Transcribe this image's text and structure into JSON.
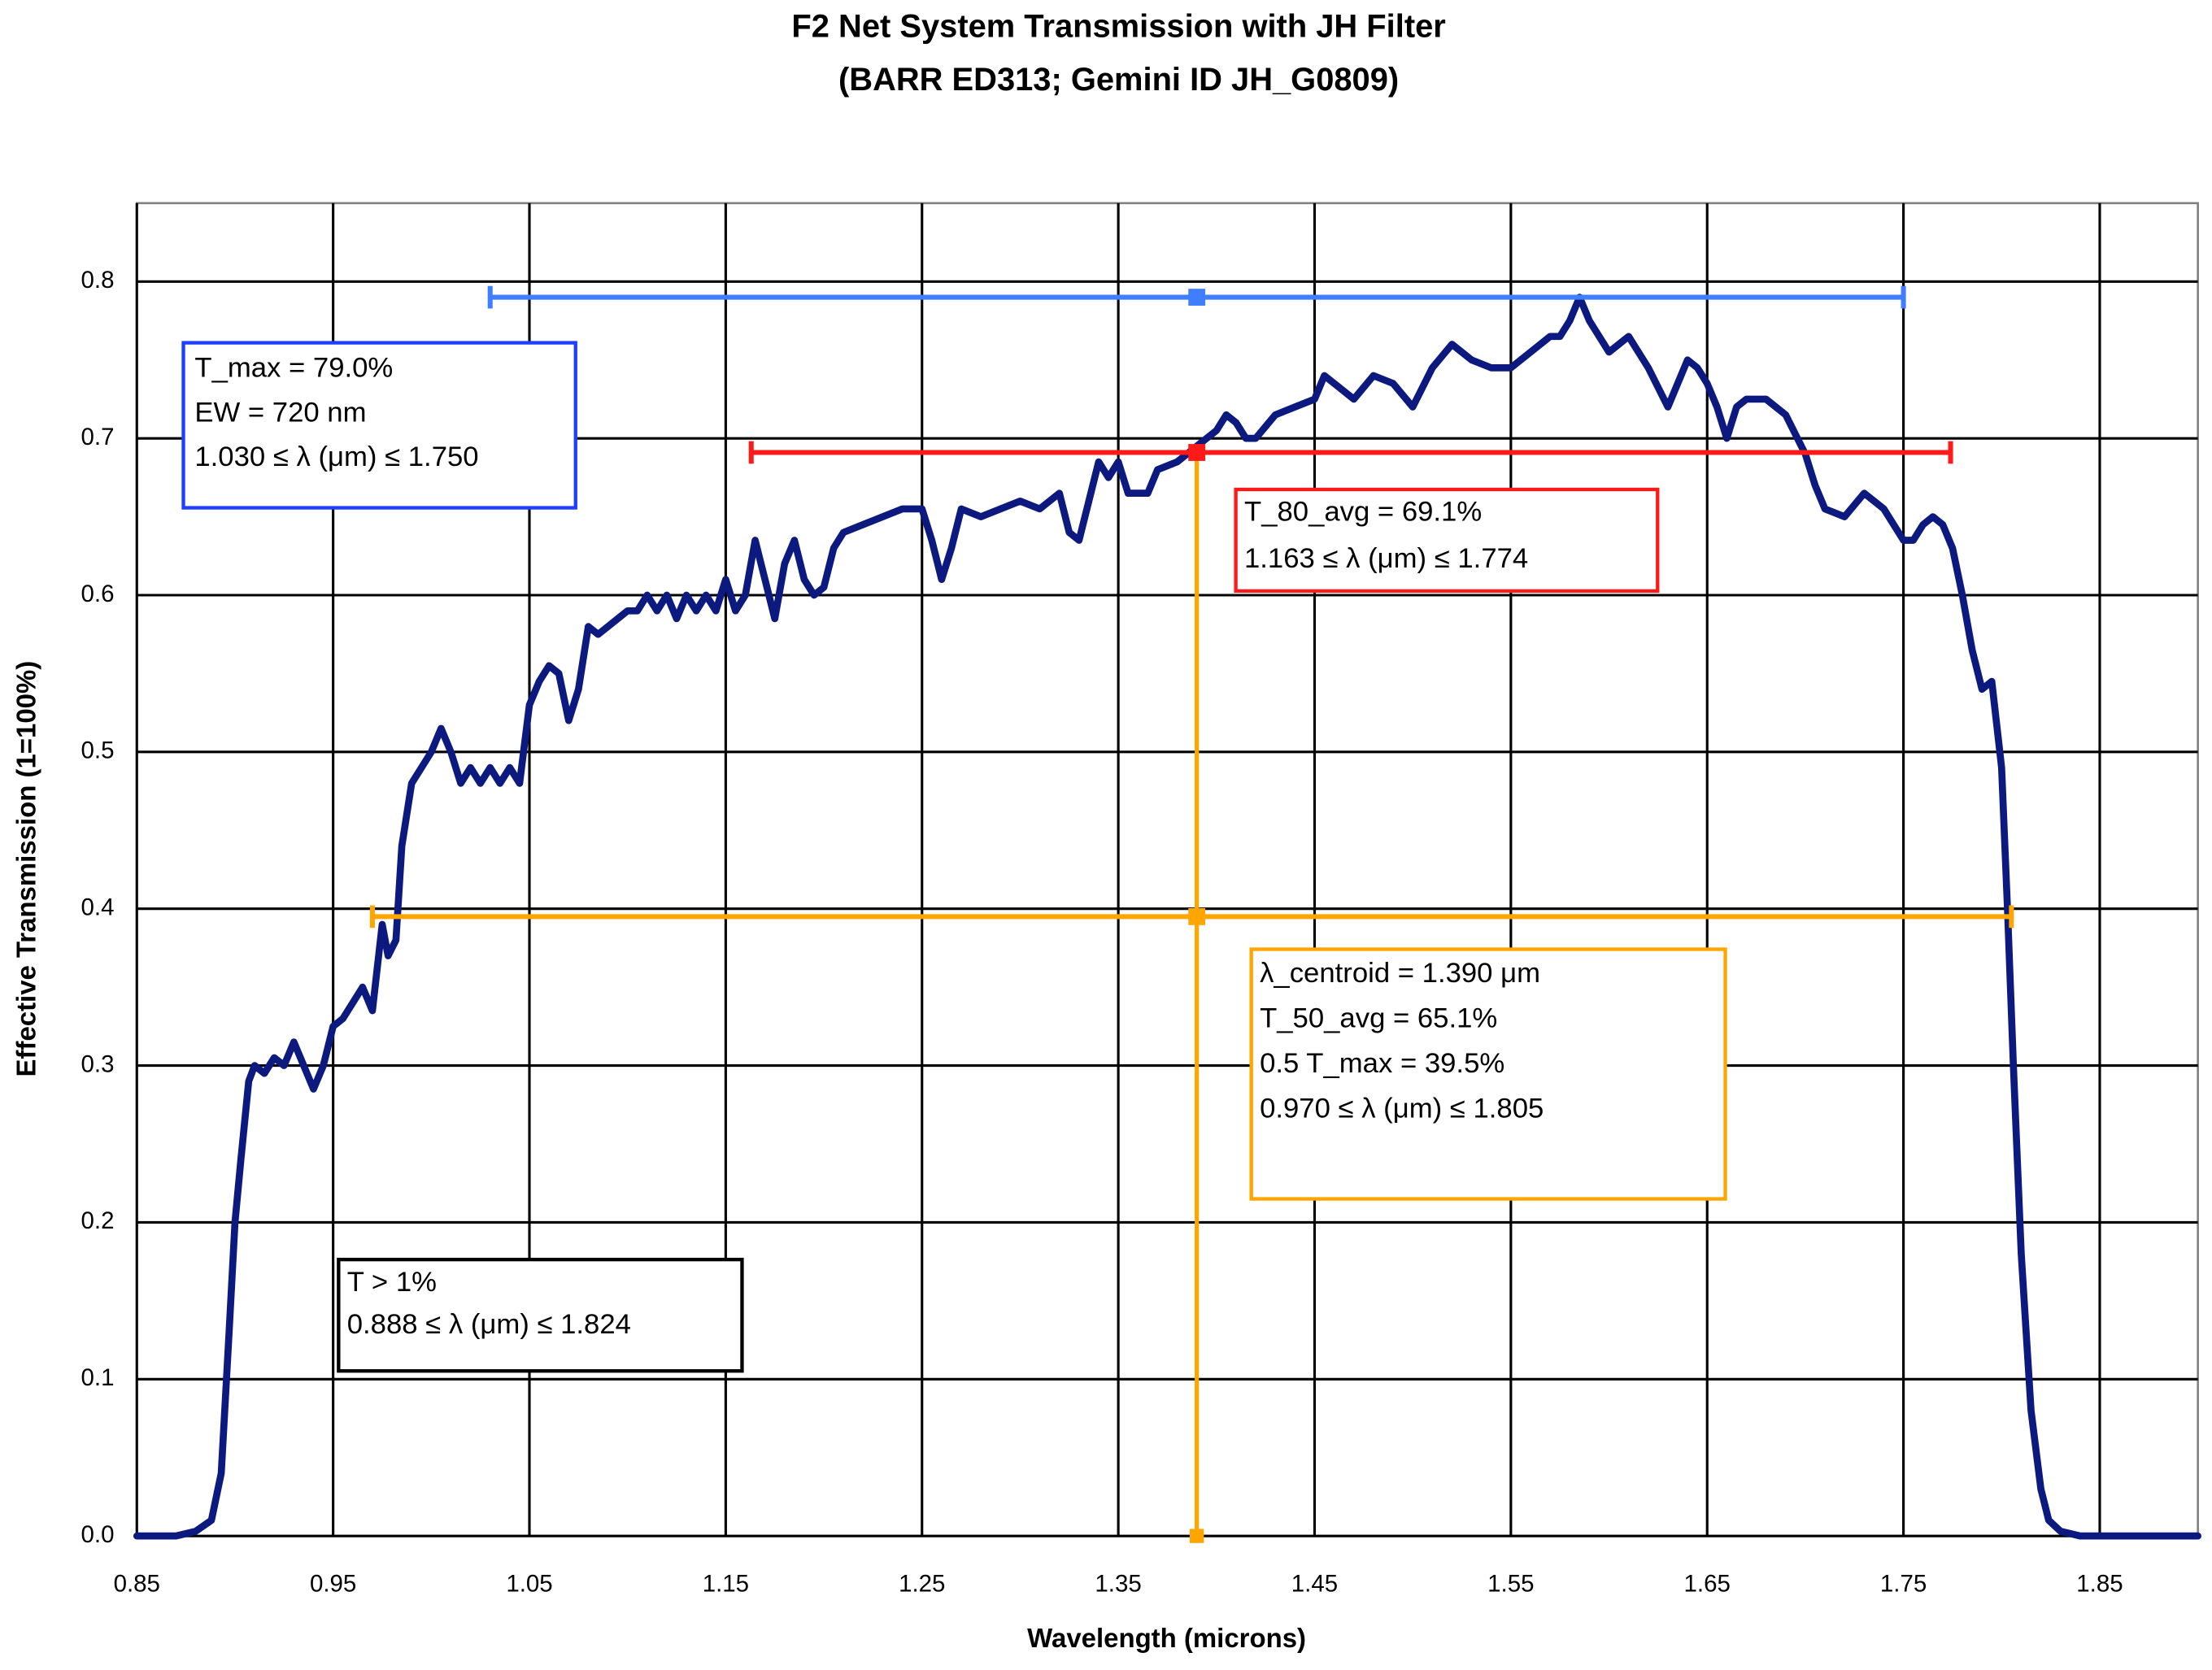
{
  "chart_data": {
    "type": "line",
    "title": "F2 Net System Transmission with JH Filter",
    "subtitle": "(BARR ED313; Gemini ID JH_G0809)",
    "x_label": "Wavelength (microns)",
    "y_label": "Effective Transmission (1=100%)",
    "xlim": [
      0.85,
      1.9
    ],
    "ylim": [
      0,
      0.85
    ],
    "xticks": [
      0.85,
      0.95,
      1.05,
      1.15,
      1.25,
      1.35,
      1.45,
      1.55,
      1.65,
      1.75,
      1.85
    ],
    "yticks": [
      {
        "value": 0,
        "label": "0.0"
      },
      0.1,
      0.2,
      0.3,
      0.4,
      0.5,
      0.6,
      0.7,
      0.8
    ],
    "grid": true,
    "x": [
      0.85,
      0.87,
      0.88,
      0.888,
      0.893,
      0.897,
      0.9,
      0.903,
      0.907,
      0.91,
      0.915,
      0.92,
      0.925,
      0.93,
      0.935,
      0.94,
      0.945,
      0.95,
      0.955,
      0.96,
      0.965,
      0.97,
      0.975,
      0.978,
      0.982,
      0.985,
      0.99,
      0.995,
      1.0,
      1.005,
      1.01,
      1.015,
      1.02,
      1.025,
      1.03,
      1.035,
      1.04,
      1.045,
      1.05,
      1.055,
      1.06,
      1.065,
      1.07,
      1.075,
      1.08,
      1.085,
      1.09,
      1.095,
      1.1,
      1.105,
      1.11,
      1.115,
      1.12,
      1.125,
      1.13,
      1.135,
      1.14,
      1.145,
      1.15,
      1.155,
      1.16,
      1.165,
      1.17,
      1.175,
      1.18,
      1.185,
      1.19,
      1.195,
      1.2,
      1.205,
      1.21,
      1.22,
      1.23,
      1.24,
      1.25,
      1.255,
      1.26,
      1.265,
      1.27,
      1.28,
      1.29,
      1.3,
      1.31,
      1.32,
      1.325,
      1.33,
      1.335,
      1.34,
      1.345,
      1.35,
      1.355,
      1.36,
      1.365,
      1.37,
      1.38,
      1.39,
      1.395,
      1.4,
      1.405,
      1.41,
      1.415,
      1.42,
      1.43,
      1.44,
      1.45,
      1.455,
      1.46,
      1.47,
      1.48,
      1.49,
      1.5,
      1.51,
      1.52,
      1.53,
      1.54,
      1.55,
      1.56,
      1.57,
      1.575,
      1.58,
      1.585,
      1.59,
      1.6,
      1.61,
      1.62,
      1.63,
      1.64,
      1.645,
      1.65,
      1.655,
      1.66,
      1.665,
      1.67,
      1.68,
      1.69,
      1.7,
      1.705,
      1.71,
      1.72,
      1.73,
      1.74,
      1.75,
      1.755,
      1.76,
      1.765,
      1.77,
      1.775,
      1.78,
      1.785,
      1.79,
      1.795,
      1.8,
      1.803,
      1.806,
      1.81,
      1.815,
      1.82,
      1.824,
      1.83,
      1.84,
      1.9
    ],
    "series": [
      {
        "color": "#0c1a80",
        "values": [
          0,
          0,
          0.003,
          0.01,
          0.04,
          0.13,
          0.2,
          0.24,
          0.29,
          0.3,
          0.295,
          0.305,
          0.3,
          0.315,
          0.3,
          0.285,
          0.3,
          0.325,
          0.33,
          0.34,
          0.35,
          0.335,
          0.39,
          0.37,
          0.38,
          0.44,
          0.48,
          0.49,
          0.5,
          0.515,
          0.5,
          0.48,
          0.49,
          0.48,
          0.49,
          0.48,
          0.49,
          0.48,
          0.53,
          0.545,
          0.555,
          0.55,
          0.52,
          0.54,
          0.58,
          0.575,
          0.58,
          0.585,
          0.59,
          0.59,
          0.6,
          0.59,
          0.6,
          0.585,
          0.6,
          0.59,
          0.6,
          0.59,
          0.61,
          0.59,
          0.6,
          0.635,
          0.61,
          0.585,
          0.62,
          0.635,
          0.61,
          0.6,
          0.605,
          0.63,
          0.64,
          0.645,
          0.65,
          0.655,
          0.655,
          0.635,
          0.61,
          0.63,
          0.655,
          0.65,
          0.655,
          0.66,
          0.655,
          0.665,
          0.64,
          0.635,
          0.66,
          0.685,
          0.675,
          0.685,
          0.665,
          0.665,
          0.665,
          0.68,
          0.685,
          0.695,
          0.7,
          0.705,
          0.715,
          0.71,
          0.7,
          0.7,
          0.715,
          0.72,
          0.725,
          0.74,
          0.735,
          0.725,
          0.74,
          0.735,
          0.72,
          0.745,
          0.76,
          0.75,
          0.745,
          0.745,
          0.755,
          0.765,
          0.765,
          0.775,
          0.79,
          0.775,
          0.755,
          0.765,
          0.745,
          0.72,
          0.75,
          0.745,
          0.735,
          0.72,
          0.7,
          0.72,
          0.725,
          0.725,
          0.715,
          0.69,
          0.67,
          0.655,
          0.65,
          0.665,
          0.655,
          0.635,
          0.635,
          0.645,
          0.65,
          0.645,
          0.63,
          0.6,
          0.565,
          0.54,
          0.545,
          0.49,
          0.4,
          0.3,
          0.18,
          0.08,
          0.03,
          0.01,
          0.003,
          0,
          0
        ]
      }
    ],
    "ranges": [
      {
        "color": "#3f7fff",
        "y": 0.79,
        "x": [
          1.03,
          1.75
        ],
        "center": 1.39
      },
      {
        "color": "#ff1a1a",
        "y": 0.691,
        "x": [
          1.163,
          1.774
        ],
        "center": 1.39
      },
      {
        "color": "#ffa500",
        "y": 0.395,
        "x": [
          0.97,
          1.805
        ],
        "center": 1.39
      }
    ],
    "vline": {
      "color": "#ffa500",
      "x": 1.39,
      "y": [
        0,
        0.691
      ]
    },
    "annotations": [
      {
        "color": "#1f3fff",
        "lines": [
          "T_max = 79.0%",
          "EW = 720 nm",
          "1.030 ≤ λ (μm) ≤ 1.750"
        ]
      },
      {
        "color": "#ff1a1a",
        "lines": [
          "T_80_avg = 69.1%",
          "1.163 ≤ λ (μm) ≤ 1.774"
        ]
      },
      {
        "color": "#ffa500",
        "lines": [
          "λ_centroid = 1.390 μm",
          "T_50_avg = 65.1%",
          "0.5 T_max = 39.5%",
          "0.970 ≤ λ (μm) ≤ 1.805"
        ]
      },
      {
        "color": "#000000",
        "lines": [
          "T > 1%",
          "0.888 ≤ λ (μm) ≤ 1.824"
        ]
      }
    ]
  }
}
